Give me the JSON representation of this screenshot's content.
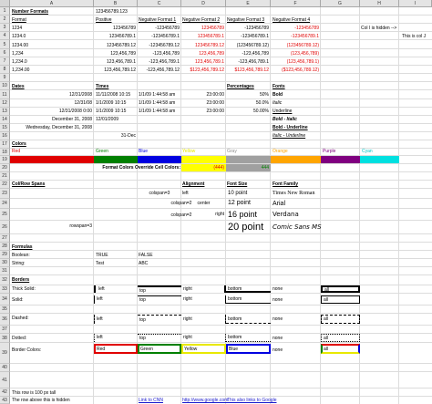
{
  "columns": [
    "A",
    "B",
    "C",
    "D",
    "E",
    "F",
    "G",
    "H",
    "I"
  ],
  "rows": [
    "1",
    "2",
    "3",
    "4",
    "5",
    "6",
    "7",
    "8",
    "9",
    "10",
    "11",
    "12",
    "13",
    "14",
    "15",
    "16",
    "17",
    "18",
    "19",
    "20",
    "21",
    "22",
    "23",
    "24",
    "25",
    "26",
    "27",
    "28",
    "29",
    "30",
    "31",
    "32",
    "33",
    "34",
    "35",
    "36",
    "37",
    "38",
    "39",
    "40",
    "41",
    "42",
    "43"
  ],
  "number_formats": {
    "title": "Number Formats",
    "b1": "123456789.123",
    "headers": [
      "Format",
      "Positive",
      "Negative Format 1",
      "Negative Format 2",
      "Negative Format 3",
      "Negative Format 4"
    ],
    "format_names": [
      "1234",
      "1234.0",
      "1234.00",
      "1,234",
      "1,234.0",
      "1,234.00"
    ],
    "positive": [
      "123456789",
      "123456789.1",
      "123456789.12",
      "123,456,789",
      "123,456,789.1",
      "123,456,789.12"
    ],
    "neg1": [
      "-123456789",
      "-123456789.1",
      "-123456789.12",
      "-123,456,789",
      "-123,456,789.1",
      "-123,456,789.12"
    ],
    "neg2": [
      "123456789",
      "123456789.1",
      "123456789.12",
      "123,456,789",
      "123,456,789.1",
      "$123,456,789.12"
    ],
    "neg3": [
      "-123456789",
      "-123456789.1",
      "(123456789.12)",
      "-123,456,789",
      "-123,456,789.1",
      "$123,456,789.12"
    ],
    "neg4": [
      "-123456789",
      "-123456789.1",
      "(123456789.12)",
      "(123,456,789)",
      "(123,456,789.1)",
      "($123,456,789.12)"
    ],
    "hidden_note": "Col I is hidden -->",
    "col_j_note": "This is col J"
  },
  "dates": {
    "title": "Dates",
    "values": [
      "12/31/2008",
      "12/31/08",
      "12/31/2008 0:00",
      "December 31, 2008",
      "Wednesday, December 31, 2008",
      "31-Dec"
    ]
  },
  "times": {
    "title": "Times",
    "b_values": [
      "11/11/2008 10:15",
      "1/1/2009 10:15",
      "1/1/2009 10:15",
      "12/01/2009"
    ],
    "c_values": [
      "1/1/09 1:44:58 am",
      "1/1/09 1:44:58 am",
      "1/1/09 1:44:58 am"
    ],
    "d_values": [
      "23:00:00",
      "23:00:00",
      "23:00:00"
    ]
  },
  "percentages": {
    "title": "Percentages",
    "values": [
      "50%",
      "50.0%",
      "50.00%"
    ]
  },
  "fonts": {
    "title": "Fonts",
    "items": [
      "Bold",
      "Italic",
      "Underline",
      "Bold - Italic",
      "Bold - Underline",
      "Italic - Underline"
    ]
  },
  "colors": {
    "title": "Colors",
    "labels": [
      "Red",
      "Green",
      "Blue",
      "Yellow",
      "Gray",
      "Orange",
      "Purple",
      "Cyan"
    ],
    "swatches": [
      "#e00000",
      "#008000",
      "#0000e0",
      "#ffff00",
      "#a0a0a0",
      "#ffa500",
      "#800080",
      "#00e0e0"
    ],
    "override_label": "Format Colors Override Cell Colors:",
    "override_red": "(444)",
    "override_green": "444"
  },
  "spans": {
    "title": "Col/Row Spans",
    "colspan3": "colspan=3",
    "colspan2a": "colspan=2",
    "colspan2b": "colspan=2",
    "rowspan3": "rowspan=3"
  },
  "alignment": {
    "title": "Alignment",
    "left": "left",
    "center": "center",
    "right": "right"
  },
  "font_size": {
    "title": "Font Size",
    "s10": "10 point",
    "s12": "12 point",
    "s16": "16 point",
    "s20": "20 point"
  },
  "font_family": {
    "title": "Font Family",
    "items": [
      "Times New Roman",
      "Arial",
      "Verdana",
      "Comic Sans MS"
    ]
  },
  "formulas": {
    "title": "Formulas",
    "boolean_label": "Boolean:",
    "string_label": "String:",
    "bool_true": "TRUE",
    "bool_false": "FALSE",
    "str1": "Test",
    "str2": "ABC"
  },
  "borders": {
    "title": "Borders",
    "labels": [
      "Thick Solid:",
      "Solid:",
      "Dashed:",
      "Dotted:",
      "Border Colors:"
    ],
    "sides": [
      "left",
      "top",
      "right",
      "bottom",
      "none",
      "all"
    ],
    "color_cells": [
      "Red",
      "Green",
      "Yellow",
      "Blue"
    ]
  },
  "footer": {
    "row42": "This row is 100 px tall",
    "row43": "The row above this is hidden",
    "link1": "Link to CNN",
    "link2": "http://www.google.com",
    "link3": "This also links to Google"
  }
}
